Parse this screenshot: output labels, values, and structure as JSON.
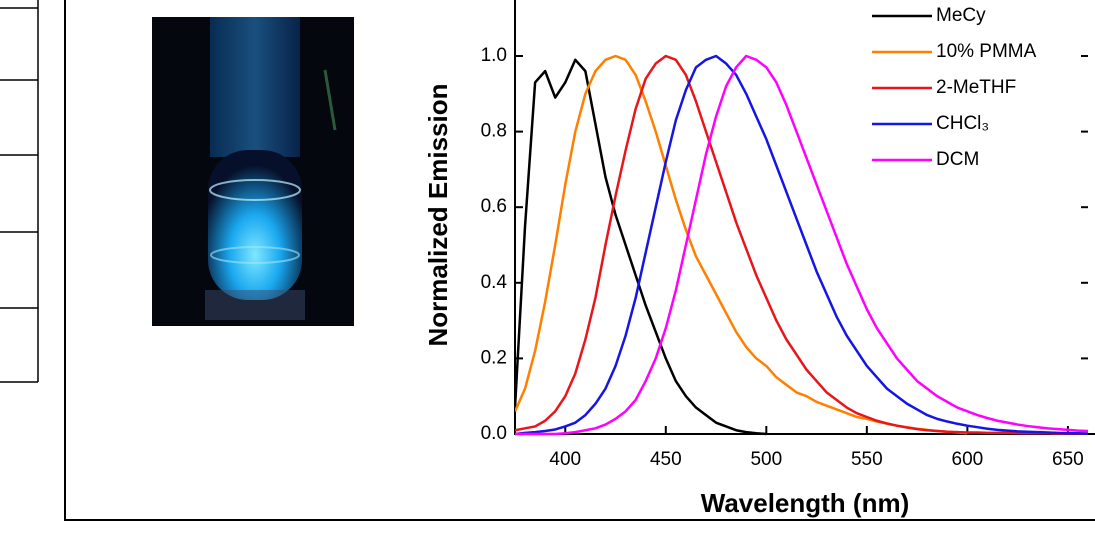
{
  "chart_data": {
    "type": "line",
    "xlabel": "Wavelength (nm)",
    "ylabel": "Normalized Emission",
    "x": [
      375,
      380,
      385,
      390,
      395,
      400,
      405,
      410,
      415,
      420,
      425,
      430,
      435,
      440,
      445,
      450,
      455,
      460,
      465,
      470,
      475,
      480,
      485,
      490,
      495,
      500,
      505,
      510,
      515,
      520,
      525,
      530,
      535,
      540,
      545,
      550,
      555,
      560,
      565,
      570,
      575,
      580,
      585,
      590,
      595,
      600,
      605,
      610,
      615,
      620,
      625,
      630,
      635,
      640,
      645,
      650,
      655,
      660
    ],
    "xlim": [
      375,
      660
    ],
    "xticks": [
      400,
      450,
      500,
      550,
      600,
      650
    ],
    "ylim": [
      0,
      1.15
    ],
    "yticks": [
      {
        "value": 0,
        "label": "0.0"
      },
      {
        "value": 0.2,
        "label": "0.2"
      },
      {
        "value": 0.4,
        "label": "0.4"
      },
      {
        "value": 0.6,
        "label": "0.6"
      },
      {
        "value": 0.8,
        "label": "0.8"
      },
      {
        "value": 1,
        "label": "1.0"
      }
    ],
    "legend": "upper right",
    "series": [
      {
        "name": "MeCy",
        "color": "#000000",
        "values": [
          0.07,
          0.55,
          0.93,
          0.96,
          0.89,
          0.93,
          0.99,
          0.96,
          0.82,
          0.68,
          0.58,
          0.5,
          0.42,
          0.34,
          0.27,
          0.2,
          0.14,
          0.1,
          0.07,
          0.05,
          0.03,
          0.02,
          0.01,
          0.005,
          0.002,
          0,
          null,
          null,
          null,
          null,
          null,
          null,
          null,
          null,
          null,
          null,
          null,
          null,
          null,
          null,
          null,
          null,
          null,
          null,
          null,
          null,
          null,
          null,
          null,
          null,
          null,
          null,
          null,
          null,
          null,
          null,
          null,
          null
        ]
      },
      {
        "name": "10% PMMA",
        "color": "#ff8000",
        "values": [
          0.06,
          0.12,
          0.22,
          0.35,
          0.5,
          0.66,
          0.8,
          0.9,
          0.96,
          0.99,
          1.0,
          0.99,
          0.95,
          0.88,
          0.8,
          0.71,
          0.62,
          0.54,
          0.47,
          0.42,
          0.37,
          0.32,
          0.27,
          0.23,
          0.2,
          0.18,
          0.15,
          0.13,
          0.11,
          0.1,
          0.085,
          0.075,
          0.065,
          0.055,
          0.045,
          0.04,
          0.033,
          0.027,
          0.022,
          0.018,
          0.014,
          0.011,
          0.008,
          0.006,
          0.004,
          0.002,
          null,
          null,
          null,
          null,
          null,
          null,
          null,
          null,
          null,
          null,
          null,
          null
        ]
      },
      {
        "name": "2-MeTHF",
        "color": "#e8161b",
        "values": [
          0.01,
          0.015,
          0.02,
          0.035,
          0.06,
          0.1,
          0.16,
          0.25,
          0.36,
          0.5,
          0.63,
          0.75,
          0.86,
          0.94,
          0.98,
          1.0,
          0.99,
          0.95,
          0.88,
          0.8,
          0.72,
          0.64,
          0.56,
          0.49,
          0.42,
          0.36,
          0.3,
          0.25,
          0.21,
          0.17,
          0.14,
          0.11,
          0.09,
          0.07,
          0.055,
          0.045,
          0.035,
          0.028,
          0.022,
          0.017,
          0.013,
          0.01,
          0.008,
          0.006,
          0.005,
          0.004,
          0.004,
          0.003,
          0.003,
          0.003,
          0.002,
          0.002,
          0.002,
          0.002,
          0.001,
          0.001,
          0.001,
          0.001
        ]
      },
      {
        "name": "CHCl₃",
        "color": "#1515e6",
        "values": [
          0,
          0.003,
          0.005,
          0.008,
          0.012,
          0.02,
          0.03,
          0.05,
          0.08,
          0.12,
          0.18,
          0.26,
          0.36,
          0.48,
          0.6,
          0.72,
          0.83,
          0.91,
          0.97,
          0.99,
          1.0,
          0.98,
          0.95,
          0.9,
          0.84,
          0.78,
          0.71,
          0.64,
          0.57,
          0.5,
          0.43,
          0.37,
          0.31,
          0.26,
          0.22,
          0.18,
          0.15,
          0.12,
          0.1,
          0.08,
          0.065,
          0.05,
          0.04,
          0.033,
          0.027,
          0.022,
          0.018,
          0.014,
          0.011,
          0.009,
          0.007,
          0.006,
          0.005,
          0.004,
          0.003,
          0.002,
          0.002,
          0.001
        ]
      },
      {
        "name": "DCM",
        "color": "#ff00ff",
        "values": [
          0,
          0,
          0,
          0,
          0,
          0.002,
          0.005,
          0.01,
          0.015,
          0.025,
          0.04,
          0.06,
          0.09,
          0.14,
          0.2,
          0.28,
          0.38,
          0.5,
          0.62,
          0.74,
          0.84,
          0.92,
          0.97,
          1.0,
          0.99,
          0.97,
          0.93,
          0.87,
          0.8,
          0.73,
          0.66,
          0.59,
          0.52,
          0.45,
          0.39,
          0.33,
          0.28,
          0.24,
          0.2,
          0.17,
          0.14,
          0.12,
          0.1,
          0.085,
          0.07,
          0.06,
          0.05,
          0.042,
          0.035,
          0.03,
          0.025,
          0.021,
          0.018,
          0.015,
          0.013,
          0.011,
          0.009,
          0.008
        ]
      }
    ]
  }
}
